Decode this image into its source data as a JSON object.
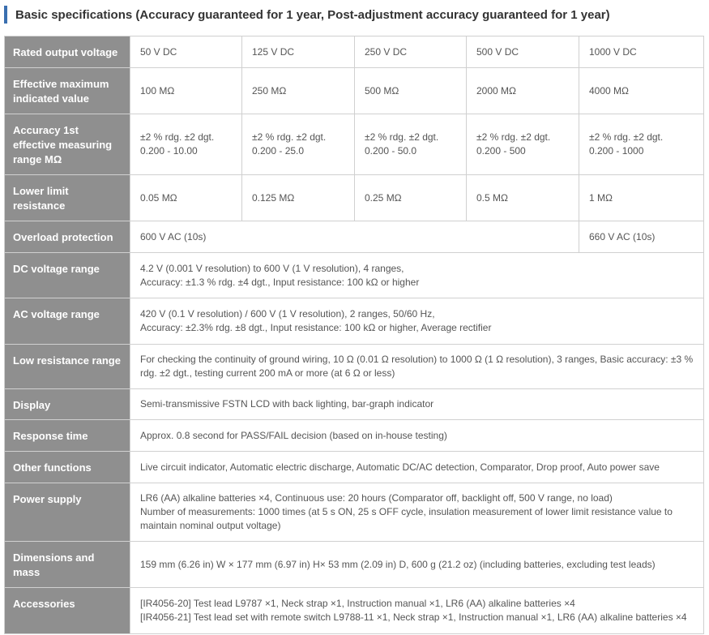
{
  "title": "Basic specifications (Accuracy guaranteed for 1 year, Post-adjustment accuracy guaranteed for 1 year)",
  "accent_color": "#3a6fb0",
  "header_color": "#8f8f8f",
  "rows": {
    "rated": {
      "label": "Rated output voltage",
      "values": [
        "50 V DC",
        "125 V DC",
        "250 V DC",
        "500 V DC",
        "1000 V DC"
      ]
    },
    "effmax": {
      "label": "Effective maximum indicated value",
      "values": [
        "100 MΩ",
        "250 MΩ",
        "500 MΩ",
        "2000 MΩ",
        "4000 MΩ"
      ]
    },
    "accuracy": {
      "label": "Accuracy 1st effective measuring range MΩ",
      "line1": "±2 % rdg. ±2 dgt.",
      "values": [
        "0.200 - 10.00",
        "0.200 - 25.0",
        "0.200 - 50.0",
        "0.200 - 500",
        "0.200 - 1000"
      ]
    },
    "lower": {
      "label": "Lower limit resistance",
      "values": [
        "0.05 MΩ",
        "0.125 MΩ",
        "0.25 MΩ",
        "0.5 MΩ",
        "1 MΩ"
      ]
    },
    "overload": {
      "label": "Overload protection",
      "values": [
        "600 V AC (10s)",
        "660 V AC (10s)"
      ]
    },
    "dcv": {
      "label": "DC voltage range",
      "lines": [
        "4.2 V (0.001 V resolution) to 600 V (1 V resolution), 4 ranges,",
        "Accuracy: ±1.3 % rdg. ±4 dgt., Input resistance: 100 kΩ or higher"
      ]
    },
    "acv": {
      "label": "AC voltage range",
      "lines": [
        "420 V (0.1 V resolution) / 600 V (1 V resolution), 2 ranges, 50/60 Hz,",
        "Accuracy: ±2.3% rdg. ±8 dgt., Input resistance: 100 kΩ or higher, Average rectifier"
      ]
    },
    "lowres": {
      "label": "Low resistance range",
      "value": "For checking the continuity of ground wiring, 10 Ω (0.01 Ω resolution) to 1000 Ω (1 Ω resolution), 3 ranges, Basic accuracy: ±3 % rdg. ±2 dgt., testing current 200 mA or more (at 6 Ω or less)"
    },
    "display": {
      "label": "Display",
      "value": "Semi-transmissive FSTN LCD with back lighting, bar-graph indicator"
    },
    "response": {
      "label": "Response time",
      "value": "Approx. 0.8 second for PASS/FAIL decision (based on in-house testing)"
    },
    "other": {
      "label": "Other functions",
      "value": "Live circuit indicator, Automatic electric discharge, Automatic DC/AC detection, Comparator, Drop proof, Auto power save"
    },
    "power": {
      "label": "Power supply",
      "lines": [
        "LR6 (AA) alkaline batteries ×4, Continuous use: 20 hours (Comparator off, backlight off, 500 V range, no load)",
        "Number of measurements: 1000 times (at 5 s ON, 25 s OFF cycle, insulation measurement of lower limit resistance value to maintain nominal output voltage)"
      ]
    },
    "dims": {
      "label": "Dimensions and mass",
      "value": "159 mm (6.26 in) W × 177 mm (6.97 in) H× 53 mm (2.09 in) D, 600 g (21.2 oz) (including batteries, excluding test leads)"
    },
    "acc": {
      "label": "Accessories",
      "lines": [
        "[IR4056-20] Test lead L9787 ×1, Neck strap ×1, Instruction manual ×1, LR6 (AA) alkaline batteries ×4",
        "[IR4056-21] Test lead set with remote switch L9788-11 ×1, Neck strap ×1, Instruction manual ×1, LR6 (AA) alkaline batteries ×4"
      ]
    }
  }
}
